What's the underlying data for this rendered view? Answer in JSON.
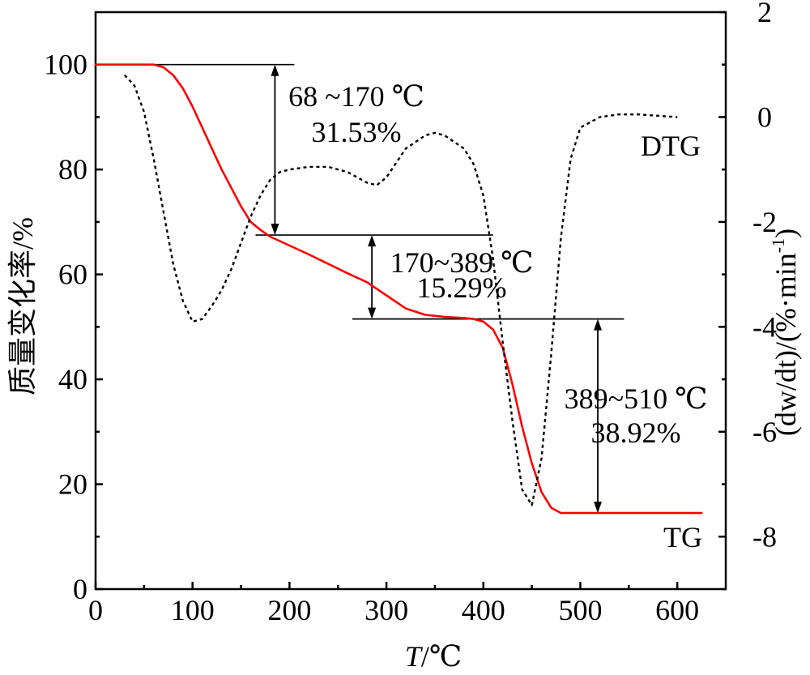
{
  "chart_data": {
    "type": "line",
    "xlabel_italic": "T",
    "xlabel_rest": "/℃",
    "ylabel_left": "质量变化率/%",
    "ylabel_right": "(dw/dt)/(%·min",
    "ylabel_right_sup": "-1",
    "ylabel_right_close": ")",
    "xlim": [
      0,
      650
    ],
    "ylim_left": [
      0,
      110
    ],
    "ylim_right": [
      -9,
      2
    ],
    "x_ticks": [
      "0",
      "100",
      "200",
      "300",
      "400",
      "500",
      "600"
    ],
    "y_left_ticks": [
      "0",
      "20",
      "40",
      "60",
      "80",
      "100"
    ],
    "y_right_ticks": [
      "2",
      "0",
      "-2",
      "-4",
      "-6",
      "-8"
    ],
    "series": [
      {
        "name": "TG",
        "axis": "left",
        "color": "#ff0000",
        "style": "solid",
        "x": [
          0,
          30,
          60,
          70,
          80,
          90,
          100,
          110,
          120,
          130,
          140,
          150,
          160,
          170,
          180,
          200,
          220,
          240,
          260,
          280,
          300,
          320,
          340,
          360,
          380,
          390,
          400,
          410,
          420,
          430,
          440,
          450,
          460,
          470,
          480,
          500,
          550,
          600,
          625
        ],
        "y": [
          100,
          100,
          100,
          99.5,
          98,
          95.5,
          92,
          88,
          84,
          80,
          76.5,
          73,
          70,
          68.5,
          67.2,
          65.5,
          63.8,
          62,
          60.2,
          58.5,
          56,
          53.5,
          52.3,
          51.9,
          51.7,
          51.5,
          51,
          49.5,
          46,
          39,
          31,
          24,
          18.5,
          15.5,
          14.5,
          14.5,
          14.5,
          14.5,
          14.5
        ]
      },
      {
        "name": "DTG",
        "axis": "right",
        "color": "#000000",
        "style": "dotted",
        "x": [
          30,
          40,
          50,
          60,
          70,
          80,
          90,
          100,
          110,
          120,
          130,
          140,
          150,
          160,
          170,
          180,
          190,
          200,
          220,
          240,
          260,
          280,
          290,
          300,
          320,
          340,
          350,
          360,
          380,
          390,
          400,
          410,
          420,
          430,
          440,
          450,
          460,
          470,
          480,
          490,
          500,
          520,
          540,
          560,
          600
        ],
        "y": [
          0.8,
          0.6,
          0.1,
          -0.8,
          -1.8,
          -2.8,
          -3.5,
          -3.9,
          -3.85,
          -3.6,
          -3.3,
          -2.9,
          -2.4,
          -1.9,
          -1.5,
          -1.2,
          -1.05,
          -1.0,
          -0.95,
          -0.95,
          -1.05,
          -1.25,
          -1.3,
          -1.15,
          -0.6,
          -0.35,
          -0.3,
          -0.35,
          -0.6,
          -0.9,
          -1.5,
          -2.7,
          -4.3,
          -5.8,
          -7.1,
          -7.4,
          -6.5,
          -4.5,
          -2.3,
          -0.8,
          -0.2,
          0.0,
          0.05,
          0.05,
          0.0
        ]
      }
    ],
    "series_labels": [
      "DTG",
      "TG"
    ],
    "annotations": [
      {
        "range": "68 ~170 ℃",
        "loss": "31.53%"
      },
      {
        "range": "170~389 ℃",
        "loss": "15.29%"
      },
      {
        "range": "389~510 ℃",
        "loss": "38.92%"
      }
    ],
    "grid": false,
    "legend": "none"
  }
}
